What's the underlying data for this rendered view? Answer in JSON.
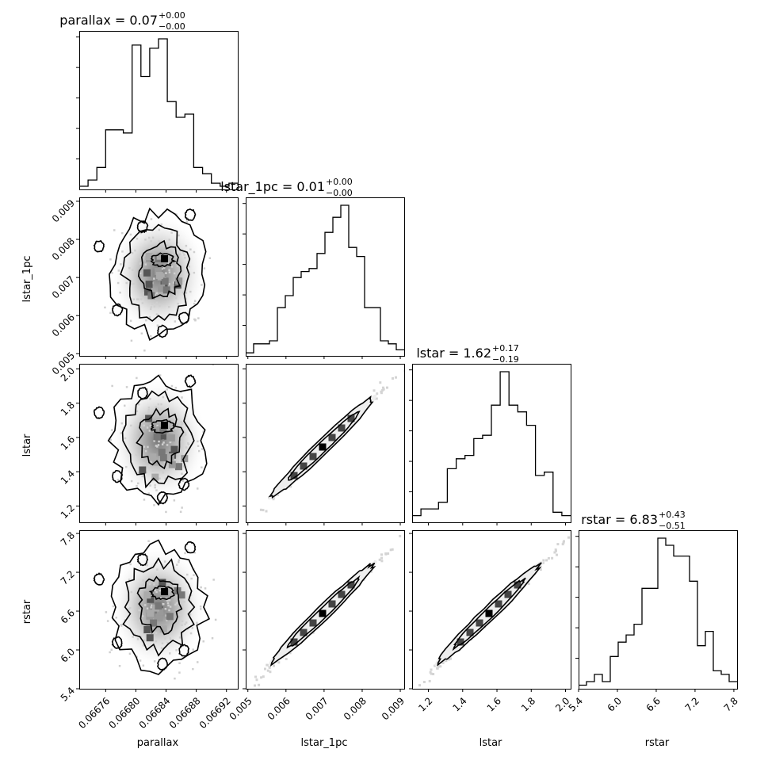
{
  "chart_data": {
    "type": "corner",
    "parameters": [
      "parallax",
      "lstar_1pc",
      "lstar",
      "rstar"
    ],
    "titles": [
      {
        "param": "parallax",
        "label": "parallax = 0.07",
        "sup": "+0.00",
        "sub": "−0.00"
      },
      {
        "param": "lstar_1pc",
        "label": "lstar_1pc = 0.01",
        "sup": "+0.00",
        "sub": "−0.00"
      },
      {
        "param": "lstar",
        "label": "lstar = 1.62",
        "sup": "+0.17",
        "sub": "−0.19"
      },
      {
        "param": "rstar",
        "label": "rstar = 6.83",
        "sup": "+0.43",
        "sub": "−0.51"
      }
    ],
    "axes": {
      "parallax": {
        "range": [
          0.066725,
          0.066935
        ],
        "ticks": [
          "0.06676",
          "0.06680",
          "0.06684",
          "0.06688",
          "0.06692"
        ],
        "tick_values": [
          0.06676,
          0.0668,
          0.06684,
          0.06688,
          0.06692
        ]
      },
      "lstar_1pc": {
        "range": [
          0.004943,
          0.009103
        ],
        "ticks": [
          "0.005",
          "0.006",
          "0.007",
          "0.008",
          "0.009"
        ],
        "tick_values": [
          0.005,
          0.006,
          0.007,
          0.008,
          0.009
        ]
      },
      "lstar": {
        "range": [
          1.105,
          2.03
        ],
        "ticks": [
          "1.2",
          "1.4",
          "1.6",
          "1.8",
          "2.0"
        ],
        "tick_values": [
          1.2,
          1.4,
          1.6,
          1.8,
          2.0
        ]
      },
      "rstar": {
        "range": [
          5.4,
          7.85
        ],
        "ticks": [
          "5.4",
          "6.0",
          "6.6",
          "7.2",
          "7.8"
        ],
        "tick_values": [
          5.4,
          6.0,
          6.6,
          7.2,
          7.8
        ]
      }
    },
    "histograms": {
      "parallax": [
        1,
        3,
        7,
        19,
        19,
        18,
        46,
        36,
        45,
        48,
        28,
        23,
        24,
        7,
        5,
        2,
        1,
        2
      ],
      "lstar_1pc": [
        1,
        4,
        4,
        5,
        16,
        20,
        26,
        28,
        29,
        34,
        41,
        46,
        50,
        36,
        33,
        16,
        16,
        5,
        4,
        2
      ],
      "lstar": [
        2,
        4,
        4,
        6,
        16,
        19,
        20,
        25,
        26,
        35,
        45,
        35,
        33,
        29,
        14,
        15,
        3,
        2
      ],
      "rstar": [
        1,
        2,
        4,
        2,
        9,
        13,
        15,
        18,
        28,
        28,
        42,
        40,
        37,
        37,
        30,
        12,
        16,
        5,
        4,
        2
      ]
    },
    "grid": false,
    "legend": "none"
  }
}
